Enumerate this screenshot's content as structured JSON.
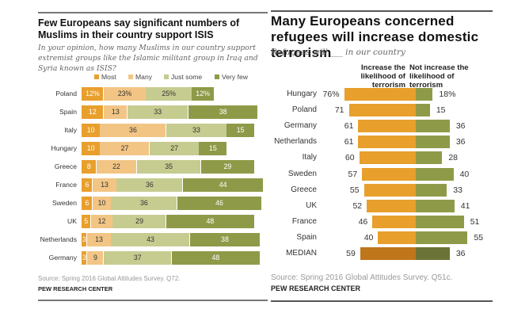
{
  "chart_data": [
    {
      "type": "bar",
      "orientation": "horizontal",
      "stacked": true,
      "title": "Few Europeans say significant numbers of Muslims in their country support ISIS",
      "subtitle": "In your opinion, how many Muslims in our country support extremist groups like the Islamic militant group in Iraq and Syria known as ISIS?",
      "categories": [
        "Poland",
        "Spain",
        "Italy",
        "Hungary",
        "Greece",
        "France",
        "Sweden",
        "UK",
        "Netherlands",
        "Germany"
      ],
      "series": [
        {
          "name": "Most",
          "color": "#E89F2C",
          "label_color": "#ffffff",
          "values": [
            12,
            12,
            10,
            10,
            8,
            6,
            6,
            5,
            3,
            3
          ]
        },
        {
          "name": "Many",
          "color": "#F2C585",
          "label_color": "#333333",
          "values": [
            23,
            13,
            36,
            27,
            22,
            13,
            10,
            12,
            13,
            9
          ]
        },
        {
          "name": "Just some",
          "color": "#C6CC90",
          "label_color": "#333333",
          "values": [
            25,
            33,
            33,
            27,
            35,
            36,
            36,
            29,
            43,
            37
          ]
        },
        {
          "name": "Very few",
          "color": "#8F9A48",
          "label_color": "#ffffff",
          "values": [
            12,
            38,
            15,
            15,
            29,
            44,
            46,
            48,
            38,
            48
          ]
        }
      ],
      "first_row_suffix": "%",
      "legend": "top",
      "xlim": [
        0,
        100
      ],
      "source": "Source: Spring 2016 Global Attitudes Survey. Q72.",
      "credit": "PEW RESEARCH CENTER"
    },
    {
      "type": "bar",
      "orientation": "horizontal",
      "diverging": true,
      "title": "Many Europeans concerned refugees will increase domestic terrorism",
      "subtitle": "Refugees will ___ in our country",
      "categories": [
        "Hungary",
        "Poland",
        "Germany",
        "Netherlands",
        "Italy",
        "Sweden",
        "Greece",
        "UK",
        "France",
        "Spain",
        "MEDIAN"
      ],
      "series": [
        {
          "name": "Increase the likelihood of terrorism",
          "header_lines": [
            "Increase the",
            "likelihood of",
            "terrorism"
          ],
          "color": "#E89F2C",
          "median_color": "#BF7519",
          "values": [
            76,
            71,
            61,
            61,
            60,
            57,
            55,
            52,
            46,
            40,
            59
          ]
        },
        {
          "name": "Not increase the likelihood of terrorism",
          "header_lines": [
            "Not increase the",
            "likelihood of",
            "terrorism"
          ],
          "color": "#8F9A48",
          "median_color": "#6C7336",
          "values": [
            18,
            15,
            36,
            36,
            28,
            40,
            33,
            41,
            51,
            55,
            36
          ]
        }
      ],
      "first_row_suffix": "%",
      "source": "Source: Spring 2016 Global Attitudes Survey. Q51c.",
      "credit": "PEW RESEARCH CENTER"
    }
  ]
}
